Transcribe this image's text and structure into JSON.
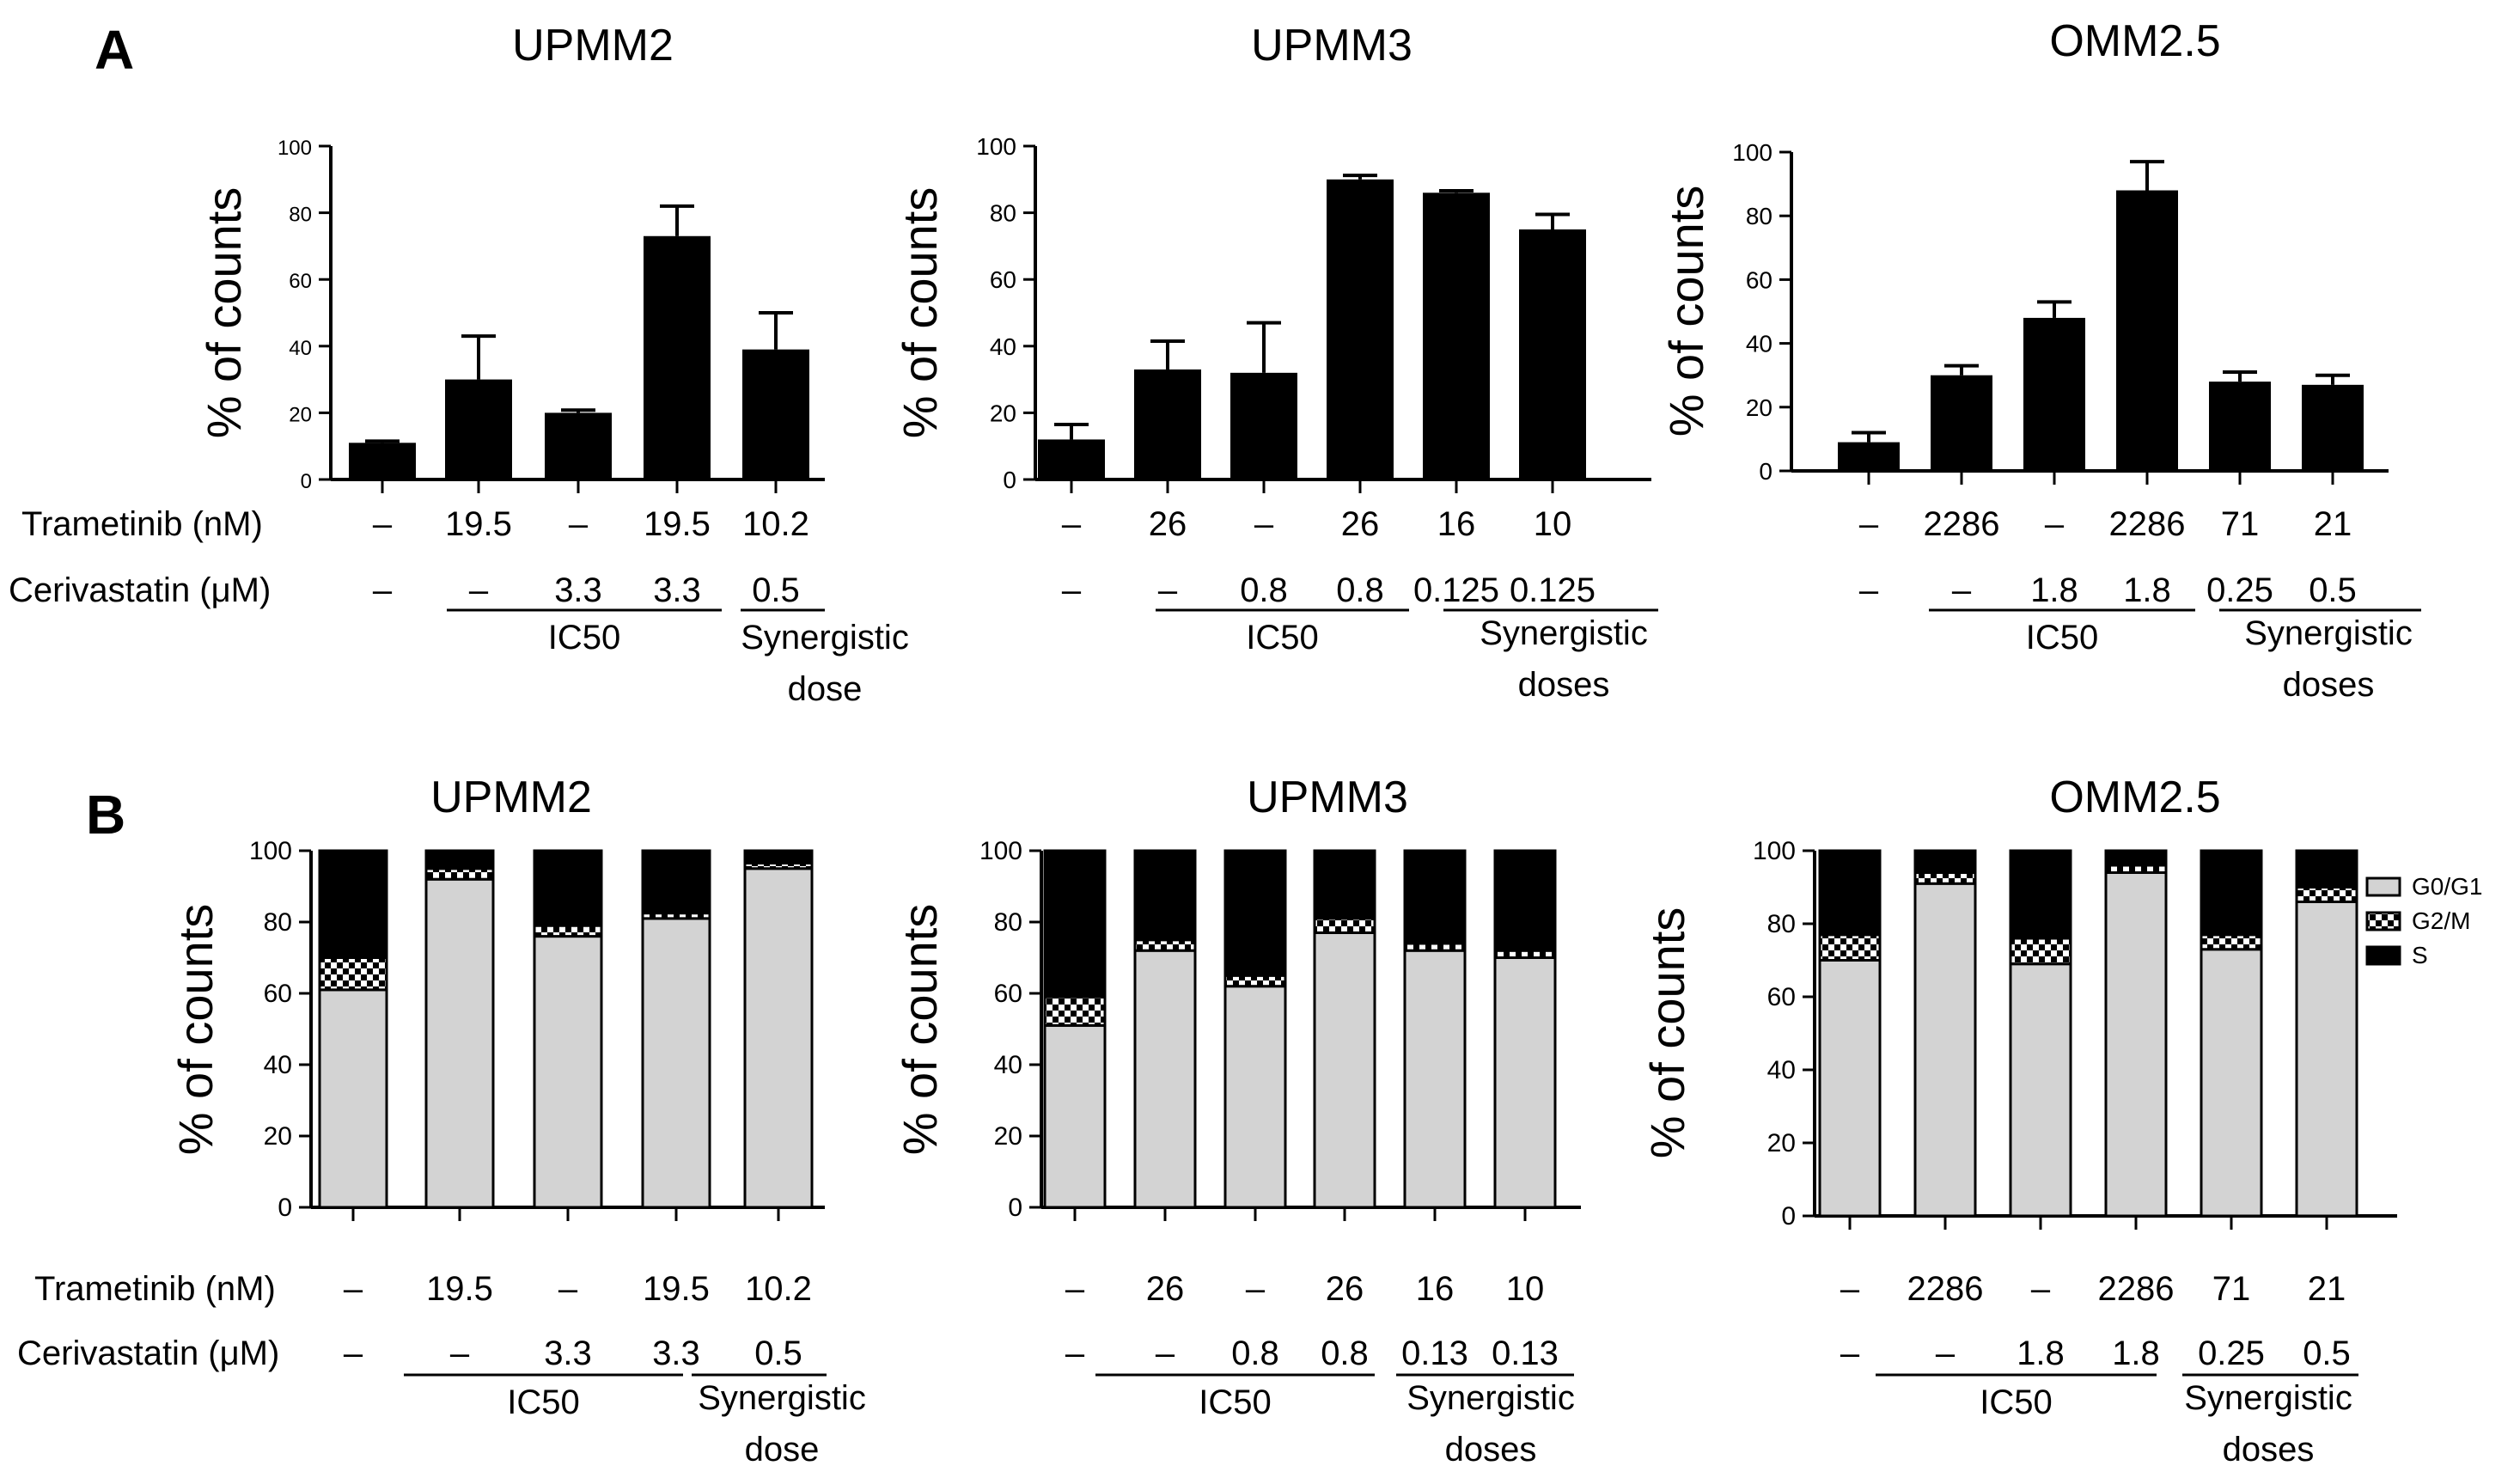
{
  "figure": {
    "panel_a_letter": "A",
    "panel_b_letter": "B",
    "colors": {
      "bar": "#000000",
      "g0g1": "#d3d3d3",
      "g2m_a": "#000000",
      "g2m_b": "#ffffff",
      "s": "#000000"
    }
  },
  "chart_data": [
    {
      "panel": "A",
      "type": "bar",
      "title": "UPMM2",
      "ylabel": "% of counts",
      "ylim": [
        0,
        100
      ],
      "yticks": [
        "0",
        "20",
        "40",
        "60",
        "80",
        "100"
      ],
      "values": [
        11,
        30,
        20,
        73,
        39
      ],
      "errors": [
        0.5,
        13,
        0.8,
        9,
        11
      ],
      "row1_label": "Trametinib (nM)",
      "row2_label": "Cerivastatin (μM)",
      "trametinib": [
        "–",
        "19.5",
        "–",
        "19.5",
        "10.2"
      ],
      "cerivastatin": [
        "–",
        "–",
        "3.3",
        "3.3",
        "0.5"
      ],
      "group1_label": "IC50",
      "group2_label_1": "Synergistic",
      "group2_label_2": "dose"
    },
    {
      "panel": "A",
      "type": "bar",
      "title": "UPMM3",
      "ylabel": "% of counts",
      "ylim": [
        0,
        100
      ],
      "yticks": [
        "0",
        "20",
        "40",
        "60",
        "80",
        "100"
      ],
      "values": [
        12,
        33,
        32,
        90,
        86,
        75
      ],
      "errors": [
        4.5,
        8.5,
        15,
        1.2,
        0.6,
        4.5
      ],
      "trametinib": [
        "–",
        "26",
        "–",
        "26",
        "16",
        "10"
      ],
      "cerivastatin": [
        "–",
        "–",
        "0.8",
        "0.8",
        "0.125",
        "0.125"
      ],
      "group1_label": "IC50",
      "group2_label_1": "Synergistic",
      "group2_label_2": "doses"
    },
    {
      "panel": "A",
      "type": "bar",
      "title": "OMM2.5",
      "ylabel": "% of counts",
      "ylim": [
        0,
        100
      ],
      "yticks": [
        "0",
        "20",
        "40",
        "60",
        "80",
        "100"
      ],
      "values": [
        9,
        30,
        48,
        88,
        28,
        27
      ],
      "errors": [
        3,
        3,
        5,
        9,
        3,
        3
      ],
      "trametinib": [
        "–",
        "2286",
        "–",
        "2286",
        "71",
        "21"
      ],
      "cerivastatin": [
        "–",
        "–",
        "1.8",
        "1.8",
        "0.25",
        "0.5"
      ],
      "group1_label": "IC50",
      "group2_label_1": "Synergistic",
      "group2_label_2": "doses"
    },
    {
      "panel": "B",
      "type": "bar",
      "stacked": true,
      "title": "UPMM2",
      "ylabel": "% of counts",
      "ylim": [
        0,
        100
      ],
      "yticks": [
        "0",
        "20",
        "40",
        "60",
        "80",
        "100"
      ],
      "series": [
        {
          "name": "G0/G1",
          "values": [
            61,
            92,
            76,
            81,
            95
          ]
        },
        {
          "name": "G2/M",
          "values": [
            9,
            3,
            3,
            1.5,
            1.5
          ]
        },
        {
          "name": "S",
          "values": [
            30,
            5,
            21,
            17.5,
            3.5
          ]
        }
      ],
      "row1_label": "Trametinib (nM)",
      "row2_label": "Cerivastatin (μM)",
      "trametinib": [
        "–",
        "19.5",
        "–",
        "19.5",
        "10.2"
      ],
      "cerivastatin": [
        "–",
        "–",
        "3.3",
        "3.3",
        "0.5"
      ],
      "group1_label": "IC50",
      "group2_label_1": "Synergistic",
      "group2_label_2": "dose"
    },
    {
      "panel": "B",
      "type": "bar",
      "stacked": true,
      "title": "UPMM3",
      "ylabel": "% of counts",
      "ylim": [
        0,
        100
      ],
      "yticks": [
        "0",
        "20",
        "40",
        "60",
        "80",
        "100"
      ],
      "series": [
        {
          "name": "G0/G1",
          "values": [
            51,
            72,
            62,
            77,
            72,
            70
          ]
        },
        {
          "name": "G2/M",
          "values": [
            8,
            3,
            3,
            4,
            2,
            2
          ]
        },
        {
          "name": "S",
          "values": [
            41,
            25,
            35,
            19,
            26,
            28
          ]
        }
      ],
      "trametinib": [
        "–",
        "26",
        "–",
        "26",
        "16",
        "10"
      ],
      "cerivastatin": [
        "–",
        "–",
        "0.8",
        "0.8",
        "0.13",
        "0.13"
      ],
      "group1_label": "IC50",
      "group2_label_1": "Synergistic",
      "group2_label_2": "doses"
    },
    {
      "panel": "B",
      "type": "bar",
      "stacked": true,
      "title": "OMM2.5",
      "ylabel": "% of counts",
      "ylim": [
        0,
        100
      ],
      "yticks": [
        "0",
        "20",
        "40",
        "60",
        "80",
        "100"
      ],
      "series": [
        {
          "name": "G0/G1",
          "values": [
            70,
            91,
            69,
            94,
            73,
            86
          ]
        },
        {
          "name": "G2/M",
          "values": [
            7,
            3,
            7,
            2,
            4,
            4
          ]
        },
        {
          "name": "S",
          "values": [
            23,
            6,
            24,
            4,
            23,
            10
          ]
        }
      ],
      "trametinib": [
        "–",
        "2286",
        "–",
        "2286",
        "71",
        "21"
      ],
      "cerivastatin": [
        "–",
        "–",
        "1.8",
        "1.8",
        "0.25",
        "0.5"
      ],
      "group1_label": "IC50",
      "group2_label_1": "Synergistic",
      "group2_label_2": "doses",
      "legend": [
        "G0/G1",
        "G2/M",
        "S"
      ],
      "legend_position": "right"
    }
  ]
}
